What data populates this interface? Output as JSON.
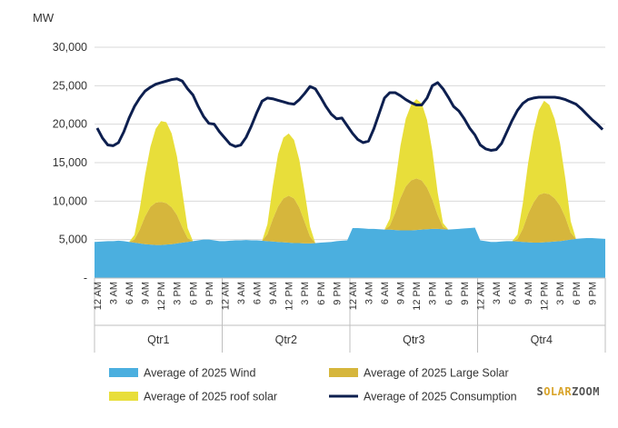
{
  "chart_data": {
    "type": "area",
    "ylabel": "MW",
    "ylim": [
      0,
      30000
    ],
    "y_ticks": [
      0,
      5000,
      10000,
      15000,
      20000,
      25000,
      30000
    ],
    "y_tick_labels": [
      "-",
      "5,000",
      "10,000",
      "15,000",
      "20,000",
      "25,000",
      "30,000"
    ],
    "grid": "horizontal",
    "legend_position": "bottom",
    "groups": [
      "Qtr1",
      "Qtr2",
      "Qtr3",
      "Qtr4"
    ],
    "hour_tick_labels": [
      "12 AM",
      "3 AM",
      "6 AM",
      "9 AM",
      "12 PM",
      "3 PM",
      "6 PM",
      "9 PM"
    ],
    "x": [
      "Qtr1 12 AM",
      "Qtr1 1 AM",
      "Qtr1 2 AM",
      "Qtr1 3 AM",
      "Qtr1 4 AM",
      "Qtr1 5 AM",
      "Qtr1 6 AM",
      "Qtr1 7 AM",
      "Qtr1 8 AM",
      "Qtr1 9 AM",
      "Qtr1 10 AM",
      "Qtr1 11 AM",
      "Qtr1 12 PM",
      "Qtr1 1 PM",
      "Qtr1 2 PM",
      "Qtr1 3 PM",
      "Qtr1 4 PM",
      "Qtr1 5 PM",
      "Qtr1 6 PM",
      "Qtr1 7 PM",
      "Qtr1 8 PM",
      "Qtr1 9 PM",
      "Qtr1 10 PM",
      "Qtr1 11 PM",
      "Qtr2 12 AM",
      "Qtr2 1 AM",
      "Qtr2 2 AM",
      "Qtr2 3 AM",
      "Qtr2 4 AM",
      "Qtr2 5 AM",
      "Qtr2 6 AM",
      "Qtr2 7 AM",
      "Qtr2 8 AM",
      "Qtr2 9 AM",
      "Qtr2 10 AM",
      "Qtr2 11 AM",
      "Qtr2 12 PM",
      "Qtr2 1 PM",
      "Qtr2 2 PM",
      "Qtr2 3 PM",
      "Qtr2 4 PM",
      "Qtr2 5 PM",
      "Qtr2 6 PM",
      "Qtr2 7 PM",
      "Qtr2 8 PM",
      "Qtr2 9 PM",
      "Qtr2 10 PM",
      "Qtr2 11 PM",
      "Qtr3 12 AM",
      "Qtr3 1 AM",
      "Qtr3 2 AM",
      "Qtr3 3 AM",
      "Qtr3 4 AM",
      "Qtr3 5 AM",
      "Qtr3 6 AM",
      "Qtr3 7 AM",
      "Qtr3 8 AM",
      "Qtr3 9 AM",
      "Qtr3 10 AM",
      "Qtr3 11 AM",
      "Qtr3 12 PM",
      "Qtr3 1 PM",
      "Qtr3 2 PM",
      "Qtr3 3 PM",
      "Qtr3 4 PM",
      "Qtr3 5 PM",
      "Qtr3 6 PM",
      "Qtr3 7 PM",
      "Qtr3 8 PM",
      "Qtr3 9 PM",
      "Qtr3 10 PM",
      "Qtr3 11 PM",
      "Qtr4 12 AM",
      "Qtr4 1 AM",
      "Qtr4 2 AM",
      "Qtr4 3 AM",
      "Qtr4 4 AM",
      "Qtr4 5 AM",
      "Qtr4 6 AM",
      "Qtr4 7 AM",
      "Qtr4 8 AM",
      "Qtr4 9 AM",
      "Qtr4 10 AM",
      "Qtr4 11 AM",
      "Qtr4 12 PM",
      "Qtr4 1 PM",
      "Qtr4 2 PM",
      "Qtr4 3 PM",
      "Qtr4 4 PM",
      "Qtr4 5 PM",
      "Qtr4 6 PM",
      "Qtr4 7 PM",
      "Qtr4 8 PM",
      "Qtr4 9 PM",
      "Qtr4 10 PM",
      "Qtr4 11 PM"
    ],
    "series": [
      {
        "name": "Average of 2025 Wind",
        "kind": "stacked-area",
        "color": "#4bafdf",
        "values": [
          4700,
          4750,
          4800,
          4800,
          4850,
          4800,
          4700,
          4600,
          4500,
          4400,
          4350,
          4300,
          4300,
          4350,
          4400,
          4500,
          4600,
          4700,
          4800,
          4900,
          5000,
          5000,
          4900,
          4800,
          4800,
          4850,
          4900,
          4900,
          4950,
          4900,
          4900,
          4850,
          4800,
          4750,
          4700,
          4650,
          4600,
          4550,
          4550,
          4500,
          4500,
          4550,
          4600,
          4650,
          4700,
          4800,
          4850,
          4900,
          6500,
          6500,
          6450,
          6400,
          6400,
          6350,
          6300,
          6300,
          6250,
          6200,
          6200,
          6200,
          6250,
          6300,
          6350,
          6400,
          6400,
          6350,
          6300,
          6350,
          6400,
          6450,
          6500,
          6550,
          4900,
          4800,
          4700,
          4700,
          4750,
          4800,
          4800,
          4750,
          4700,
          4650,
          4600,
          4600,
          4650,
          4700,
          4750,
          4800,
          4900,
          5000,
          5100,
          5150,
          5200,
          5200,
          5150,
          5100
        ]
      },
      {
        "name": "Average of 2025 Large Solar",
        "kind": "stacked-area",
        "color": "#d6b63c",
        "values": [
          0,
          0,
          0,
          0,
          0,
          0,
          0,
          400,
          1800,
          3600,
          4900,
          5500,
          5600,
          5400,
          4800,
          3700,
          2000,
          500,
          0,
          0,
          0,
          0,
          0,
          0,
          0,
          0,
          0,
          0,
          0,
          0,
          0,
          0,
          900,
          2900,
          4600,
          5700,
          6100,
          5800,
          4600,
          2800,
          900,
          0,
          0,
          0,
          0,
          0,
          0,
          0,
          0,
          0,
          0,
          0,
          0,
          0,
          0,
          500,
          2200,
          4200,
          5700,
          6500,
          6700,
          6400,
          5400,
          3800,
          1800,
          300,
          0,
          0,
          0,
          0,
          0,
          0,
          0,
          0,
          0,
          0,
          0,
          0,
          0,
          300,
          1700,
          3700,
          5200,
          6200,
          6400,
          6200,
          5600,
          4600,
          3000,
          900,
          0,
          0,
          0,
          0,
          0,
          0
        ]
      },
      {
        "name": "Average of 2025 roof solar",
        "kind": "stacked-area",
        "color": "#e8de3a",
        "values": [
          0,
          0,
          0,
          0,
          0,
          0,
          0,
          600,
          2700,
          5400,
          7800,
          9600,
          10500,
          10500,
          9600,
          7600,
          4600,
          1300,
          0,
          0,
          0,
          0,
          0,
          0,
          0,
          0,
          0,
          0,
          0,
          0,
          0,
          0,
          1300,
          4300,
          6800,
          7900,
          8100,
          7600,
          6200,
          3900,
          1300,
          0,
          0,
          0,
          0,
          0,
          0,
          0,
          0,
          0,
          0,
          0,
          0,
          0,
          0,
          900,
          3800,
          6800,
          8800,
          9800,
          10300,
          10000,
          8800,
          6300,
          2900,
          500,
          0,
          0,
          0,
          0,
          0,
          0,
          0,
          0,
          0,
          0,
          0,
          0,
          0,
          600,
          3300,
          6600,
          9200,
          11000,
          12000,
          11600,
          10300,
          8100,
          5000,
          1500,
          0,
          0,
          0,
          0,
          0,
          0
        ]
      },
      {
        "name": "Average of 2025 Consumption",
        "kind": "line",
        "color": "#0d1f4f",
        "values": [
          19500,
          18200,
          17300,
          17200,
          17600,
          19000,
          20800,
          22300,
          23400,
          24300,
          24800,
          25200,
          25400,
          25600,
          25800,
          25900,
          25600,
          24600,
          23800,
          22300,
          21000,
          20100,
          20000,
          19000,
          18200,
          17400,
          17100,
          17300,
          18300,
          19800,
          21500,
          23000,
          23400,
          23300,
          23100,
          22900,
          22700,
          22600,
          23200,
          24000,
          24900,
          24600,
          23500,
          22300,
          21300,
          20700,
          20800,
          19800,
          18800,
          18000,
          17600,
          17800,
          19400,
          21400,
          23400,
          24100,
          24100,
          23700,
          23200,
          22800,
          22500,
          22500,
          23400,
          25000,
          25400,
          24600,
          23500,
          22300,
          21700,
          20700,
          19500,
          18600,
          17300,
          16800,
          16600,
          16700,
          17500,
          19000,
          20500,
          21800,
          22700,
          23200,
          23400,
          23500,
          23500,
          23500,
          23500,
          23400,
          23200,
          22900,
          22600,
          22000,
          21300,
          20600,
          20000,
          19300
        ]
      }
    ],
    "legend": [
      "Average of 2025 Wind",
      "Average of 2025 Large Solar",
      "Average of 2025 roof solar",
      "Average of 2025 Consumption"
    ]
  },
  "watermark": {
    "part_a": "S",
    "part_b": "OLAR",
    "part_c": "ZOOM"
  }
}
